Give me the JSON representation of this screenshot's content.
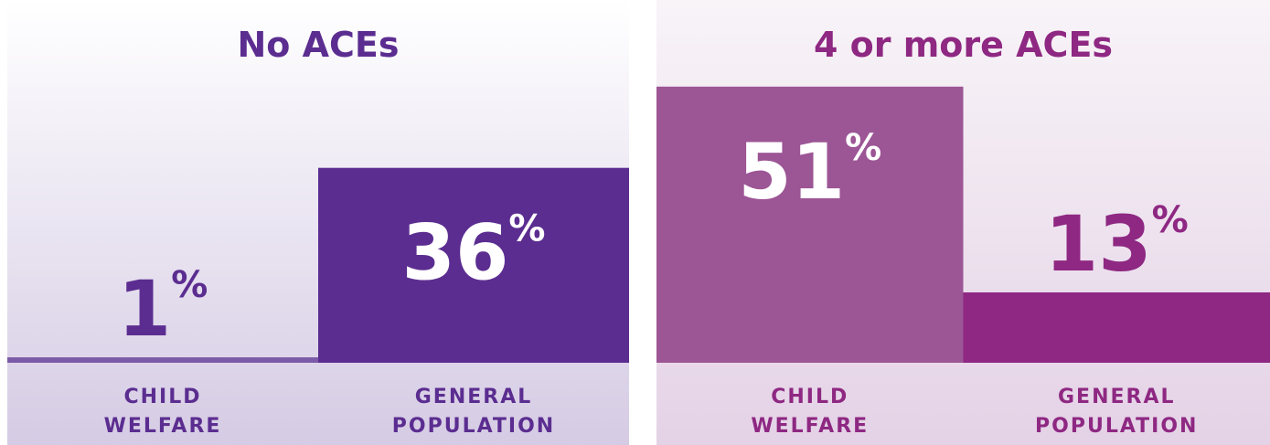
{
  "chart_data": [
    {
      "type": "bar",
      "title": "No ACEs",
      "categories": [
        "CHILD WELFARE",
        "GENERAL POPULATION"
      ],
      "values": [
        1,
        36
      ],
      "value_labels": [
        "1%",
        "36%"
      ],
      "colors": [
        "#7b5aa8",
        "#5b2d90"
      ],
      "text_color": "#5b2d90",
      "ylim": [
        0,
        67
      ]
    },
    {
      "type": "bar",
      "title": "4 or more ACEs",
      "categories": [
        "CHILD WELFARE",
        "GENERAL POPULATION"
      ],
      "values": [
        51,
        13
      ],
      "value_labels": [
        "51%",
        "13%"
      ],
      "colors": [
        "#9c5595",
        "#8e2882"
      ],
      "text_color": "#8e2882",
      "ylim": [
        0,
        67
      ]
    }
  ]
}
